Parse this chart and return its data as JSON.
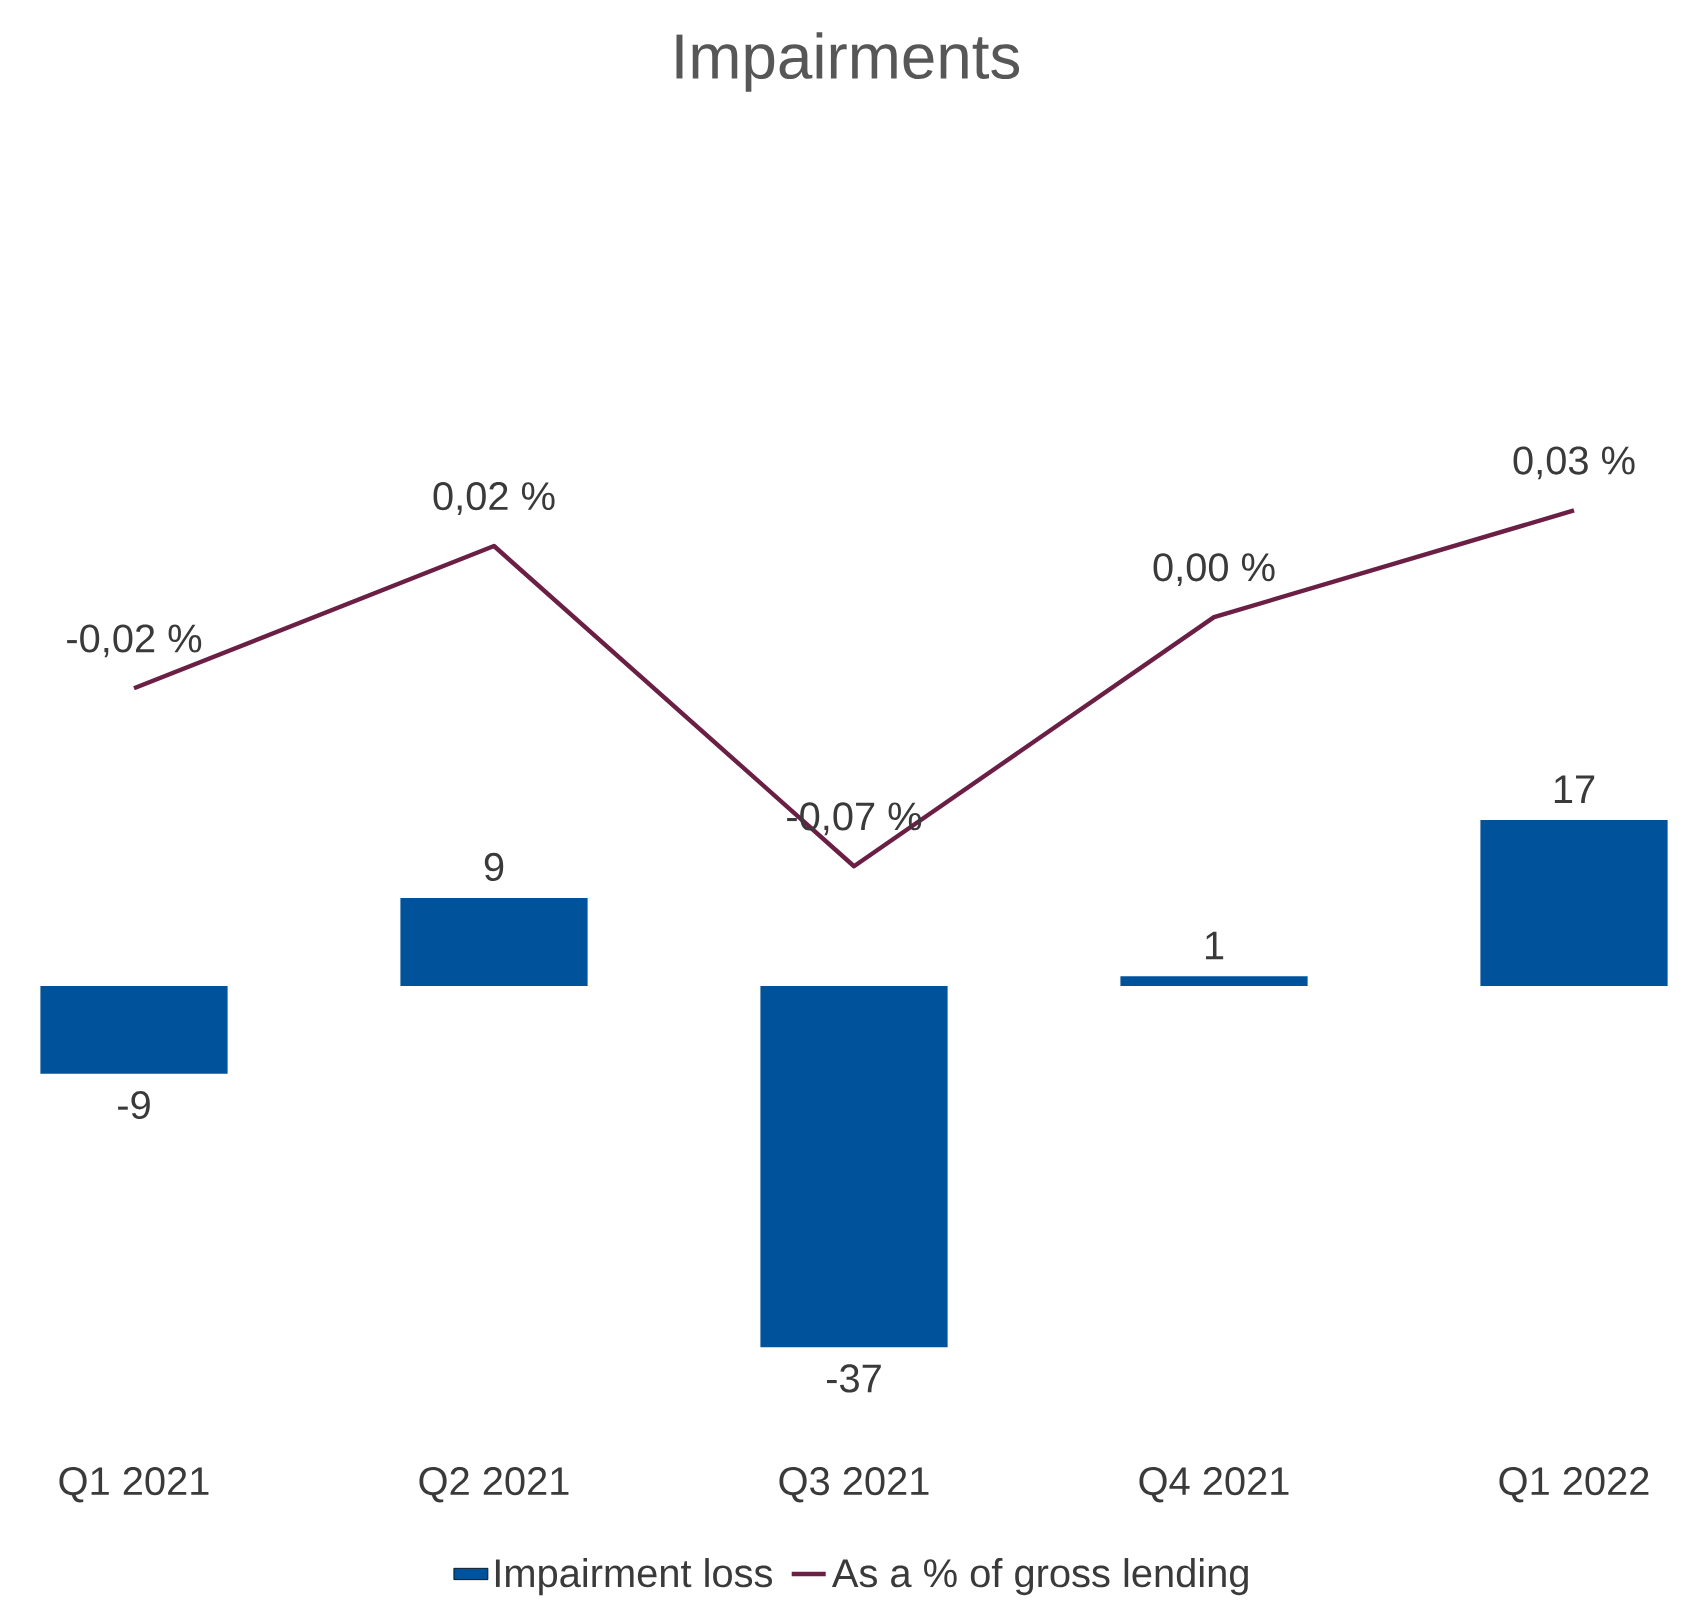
{
  "chart_data": {
    "type": "bar",
    "title": "Impairments",
    "categories": [
      "Q1 2021",
      "Q2 2021",
      "Q3 2021",
      "Q4 2021",
      "Q1 2022"
    ],
    "series": [
      {
        "name": "Impairment loss",
        "color": "#00539b",
        "values": [
          -9,
          9,
          -37,
          1,
          17
        ]
      },
      {
        "name": "As a % of gross lending",
        "type": "line",
        "axis": "y2",
        "color": "#6b1f45",
        "values": [
          -0.02,
          0.02,
          -0.07,
          0.0,
          0.03
        ],
        "value_labels": [
          "-0,02 %",
          "0,02 %",
          "-0,07 %",
          "0,00 %",
          "0,03 %"
        ]
      }
    ],
    "data_labels": true,
    "legend": "bottom",
    "marker": "none"
  }
}
